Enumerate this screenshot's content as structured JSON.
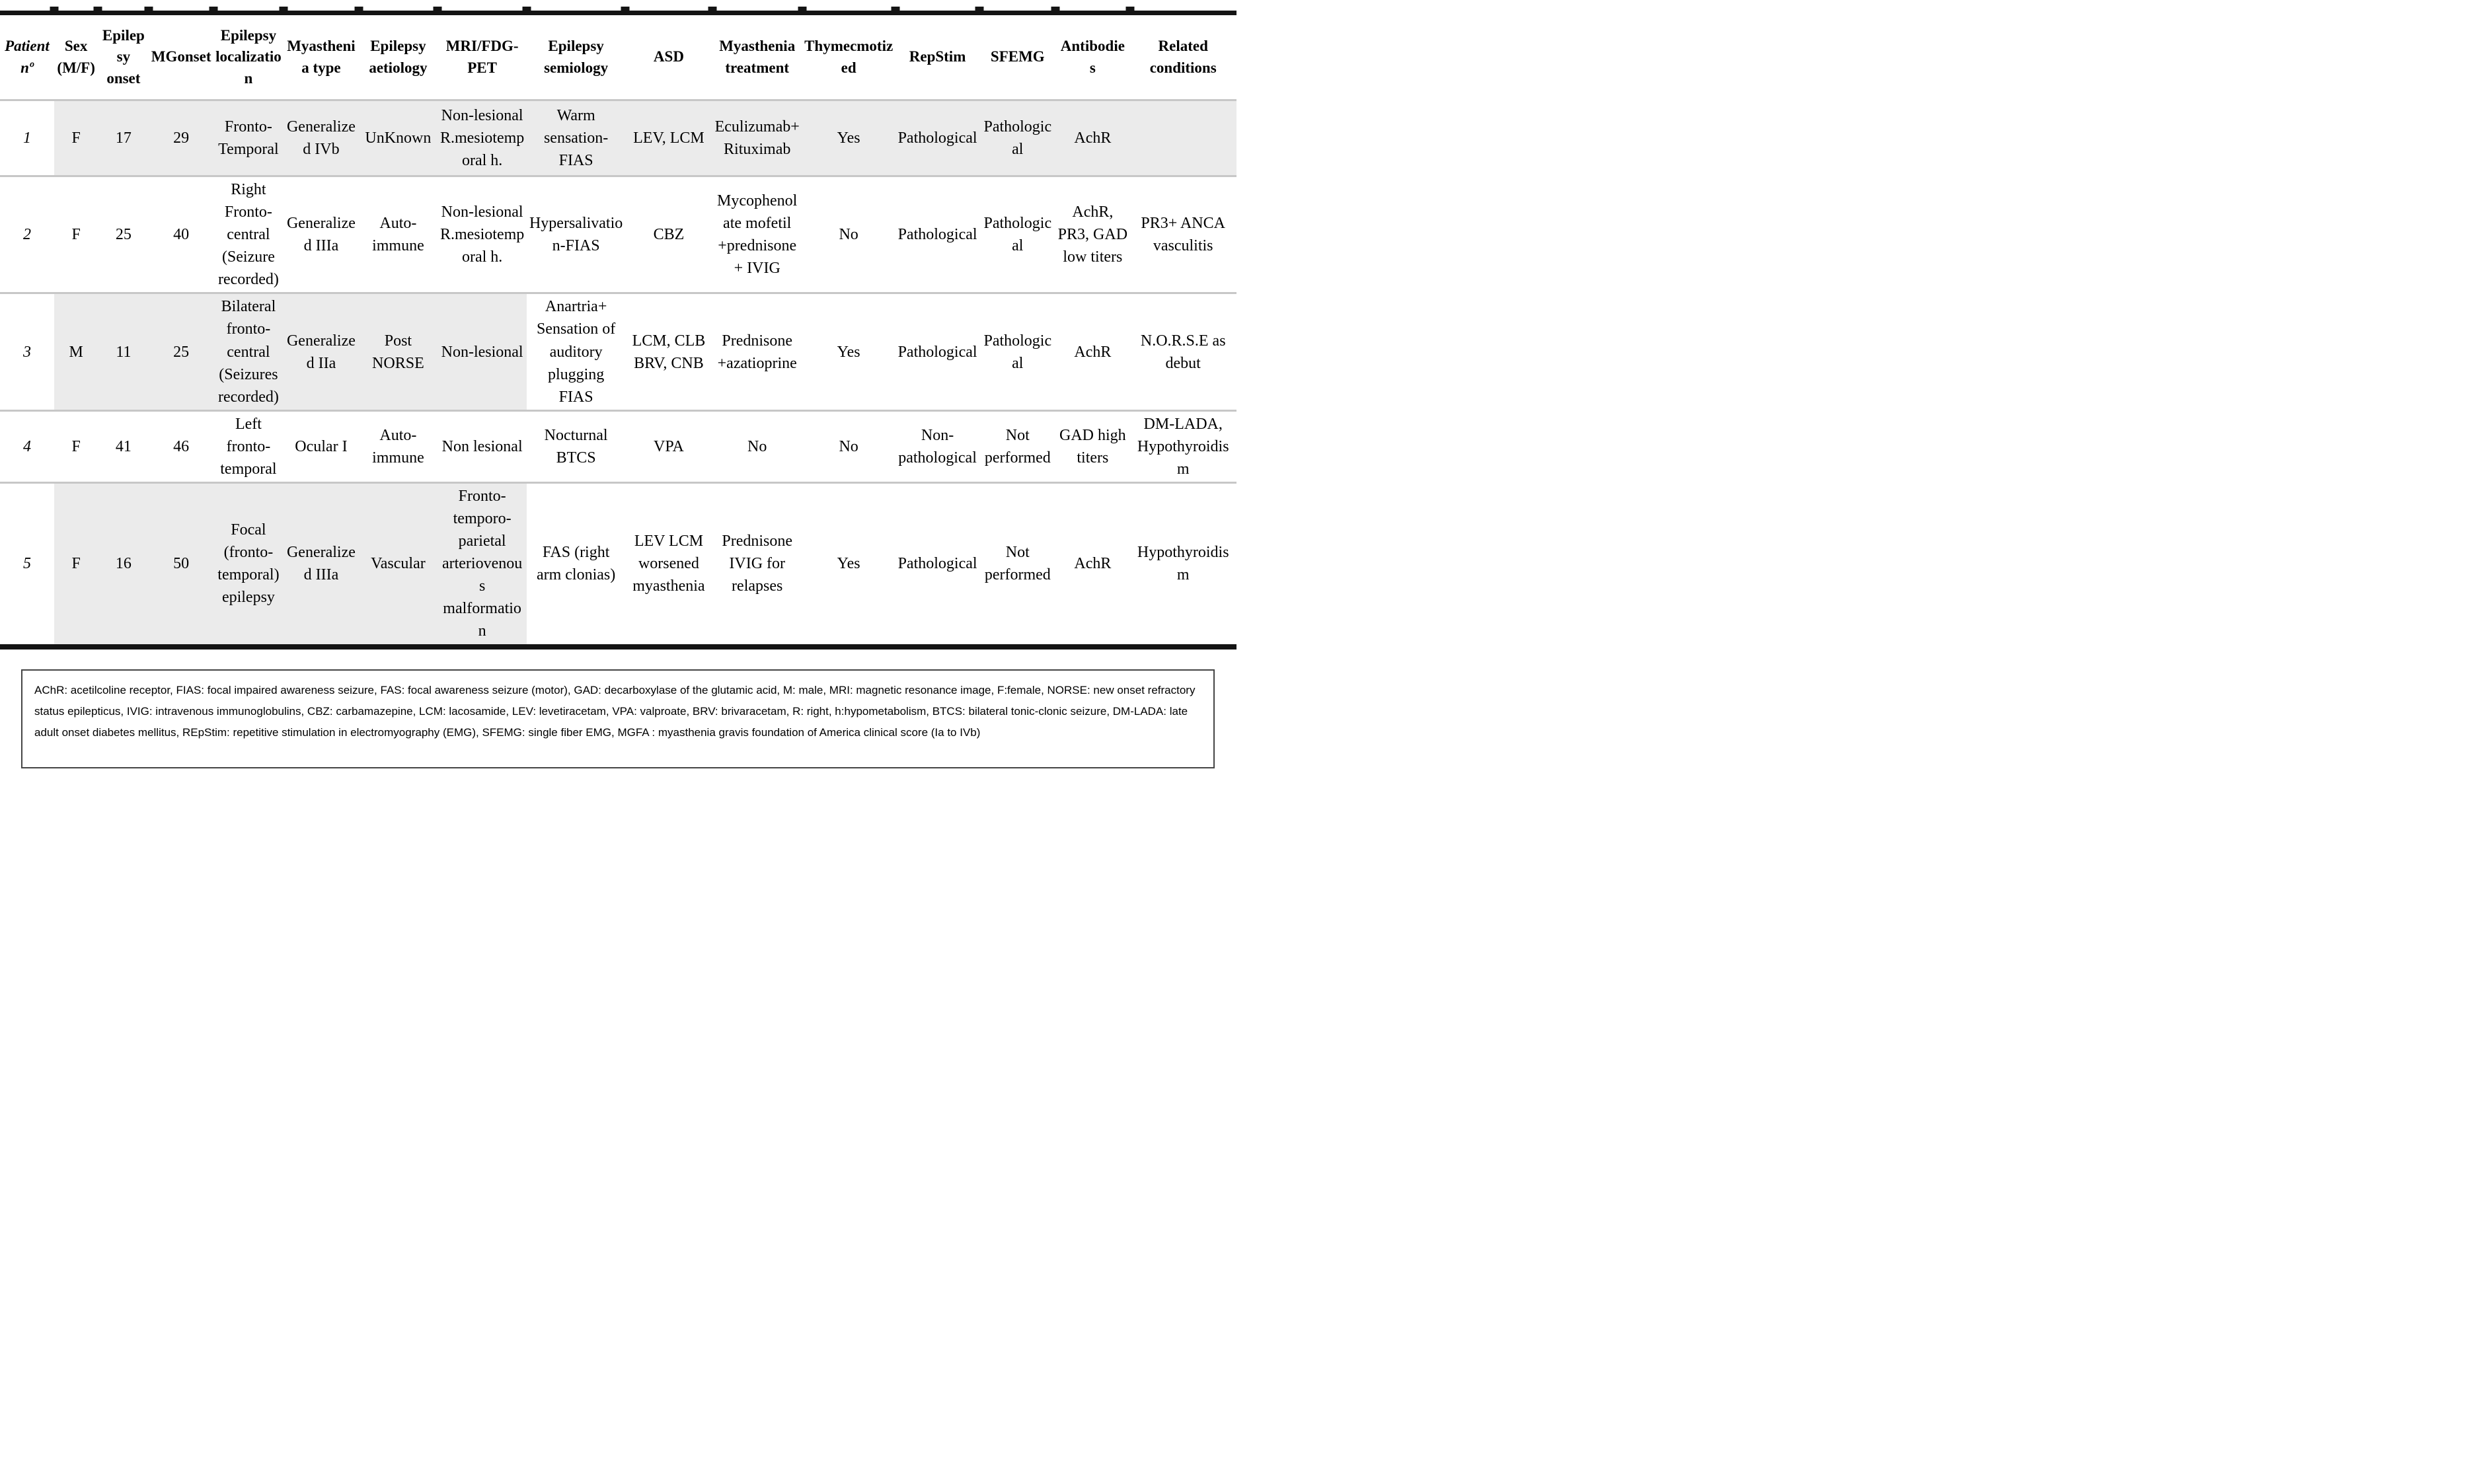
{
  "table": {
    "columns": [
      {
        "label": "Patient nº"
      },
      {
        "label": "Sex (M/F)"
      },
      {
        "label": "Epilepsy onset"
      },
      {
        "label": "MGonset"
      },
      {
        "label": "Epilepsy localization"
      },
      {
        "label": "Myasthenia type"
      },
      {
        "label": "Epilepsy aetiology"
      },
      {
        "label": "MRI/FDG-PET"
      },
      {
        "label": "Epilepsy semiology"
      },
      {
        "label": "ASD"
      },
      {
        "label": "Myasthenia treatment"
      },
      {
        "label": "Thymecmotized"
      },
      {
        "label": "RepStim"
      },
      {
        "label": "SFEMG"
      },
      {
        "label": "Antibodies"
      },
      {
        "label": "Related conditions"
      }
    ],
    "rows": [
      {
        "shading": "full",
        "cells": [
          "1",
          "F",
          "17",
          "29",
          "Fronto-Temporal",
          "Generalized IVb",
          "UnKnown",
          "Non-lesional R.mesiotemporal h.",
          "Warm sensation-FIAS",
          "LEV, LCM",
          "Eculizumab+ Rituximab",
          "Yes",
          "Pathological",
          "Pathological",
          "AchR",
          ""
        ]
      },
      {
        "shading": "none",
        "cells": [
          "2",
          "F",
          "25",
          "40",
          "Right Fronto-central (Seizure recorded)",
          "Generalized IIIa",
          "Auto-immune",
          "Non-lesional R.mesiotemporal h.",
          "Hypersalivation-FIAS",
          "CBZ",
          "Mycophenolate mofetil +prednisone + IVIG",
          "No",
          "Pathological",
          "Pathological",
          "AchR, PR3, GAD low titers",
          "PR3+ ANCA vasculitis"
        ]
      },
      {
        "shading": "partial",
        "cells": [
          "3",
          "M",
          "11",
          "25",
          "Bilateral fronto-central (Seizures recorded)",
          "Generalized IIa",
          "Post NORSE",
          "Non-lesional",
          "Anartria+ Sensation of auditory plugging FIAS",
          "LCM, CLB BRV, CNB",
          "Prednisone +azatioprine",
          "Yes",
          "Pathological",
          "Pathological",
          "AchR",
          "N.O.R.S.E as debut"
        ]
      },
      {
        "shading": "none",
        "cells": [
          "4",
          "F",
          "41",
          "46",
          "Left fronto-temporal",
          "Ocular I",
          "Auto-immune",
          "Non lesional",
          "Nocturnal BTCS",
          "VPA",
          "No",
          "No",
          "Non-pathological",
          "Not performed",
          "GAD high titers",
          "DM-LADA, Hypothyroidism"
        ]
      },
      {
        "shading": "partial",
        "cells": [
          "5",
          "F",
          "16",
          "50",
          "Focal (fronto-temporal) epilepsy",
          "Generalized IIIa",
          "Vascular",
          "Fronto-temporo-parietal arteriovenous malformation",
          "FAS (right arm clonias)",
          "LEV LCM worsened myasthenia",
          "Prednisone IVIG for relapses",
          "Yes",
          "Pathological",
          "Not performed",
          "AchR",
          "Hypothyroidism"
        ]
      }
    ]
  },
  "footnote": {
    "text": "AChR: acetilcoline receptor, FIAS: focal impaired awareness seizure, FAS: focal awareness seizure (motor), GAD: decarboxylase of the glutamic acid, M: male, MRI: magnetic resonance image, F:female, NORSE: new onset refractory status epilepticus, IVIG: intravenous immunoglobulins, CBZ: carbamazepine, LCM: lacosamide, LEV: levetiracetam, VPA: valproate, BRV: brivaracetam, R: right, h:hypometabolism, BTCS: bilateral tonic-clonic seizure, DM-LADA: late adult onset diabetes mellitus, REpStim: repetitive stimulation in electromyography (EMG), SFEMG: single fiber EMG, MGFA : myasthenia gravis foundation of America clinical score (Ia to IVb)"
  },
  "colors": {
    "row_shade": "#ebebeb",
    "separator": "#c7c7c7",
    "table_rule": "#141414",
    "footnote_border": "#454545"
  }
}
